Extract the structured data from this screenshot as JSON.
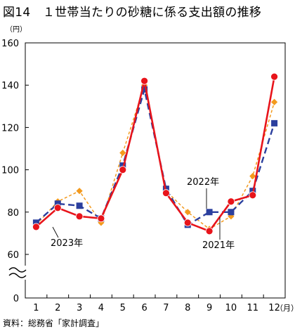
{
  "title": "図14　１世帯当たりの砂糖に係る支出額の推移",
  "source": "資料：総務省「家計調査」",
  "chart_data": {
    "type": "line",
    "y_unit": "（円）",
    "x_unit": "（月）",
    "categories": [
      "1",
      "2",
      "3",
      "4",
      "5",
      "6",
      "7",
      "8",
      "9",
      "10",
      "11",
      "12"
    ],
    "y_ticks": [
      "160",
      "140",
      "120",
      "100",
      "80",
      "60",
      "0"
    ],
    "ylim": [
      60,
      160
    ],
    "axis_break": true,
    "grid": false,
    "series": [
      {
        "name": "2023年",
        "color": "#e8141b",
        "marker": "circle",
        "dash": "solid",
        "values": [
          73,
          82,
          78,
          77,
          100,
          142,
          89,
          75,
          71,
          85,
          88,
          144
        ]
      },
      {
        "name": "2022年",
        "color": "#2b3f9e",
        "marker": "square",
        "dash": "dashed",
        "values": [
          75,
          84,
          83,
          77,
          102,
          138,
          91,
          74,
          80,
          80,
          90,
          122
        ]
      },
      {
        "name": "2021年",
        "color": "#f39a1e",
        "marker": "diamond",
        "dash": "dotted",
        "values": [
          74,
          85,
          90,
          75,
          108,
          140,
          90,
          80,
          72,
          78,
          97,
          132
        ]
      }
    ]
  }
}
